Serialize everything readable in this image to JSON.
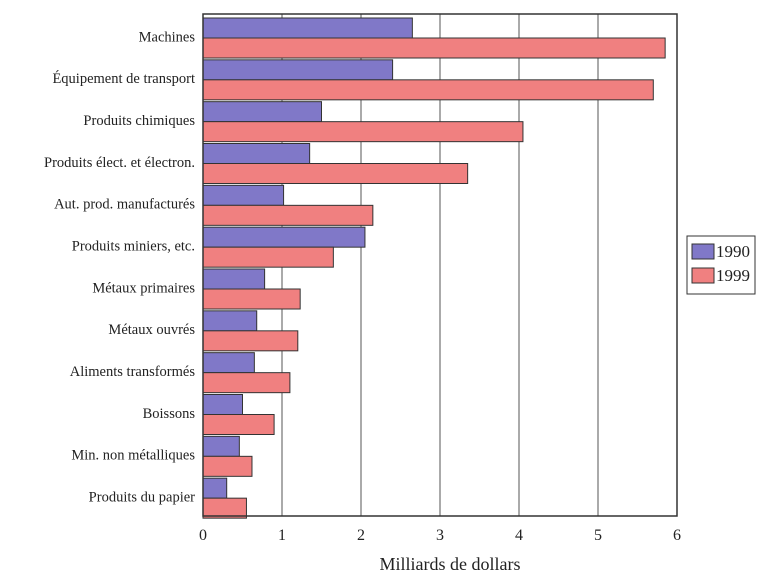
{
  "chart_data": {
    "type": "bar",
    "orientation": "horizontal",
    "title": "",
    "xlabel": "Milliards de dollars",
    "ylabel": "",
    "xlim": [
      0,
      6
    ],
    "xticks": [
      "0",
      "1",
      "2",
      "3",
      "4",
      "5",
      "6"
    ],
    "grid": true,
    "legend_position": "right",
    "categories": [
      "Machines",
      "Équipement de transport",
      "Produits chimiques",
      "Produits élect. et électron.",
      "Aut. prod. manufacturés",
      "Produits miniers, etc.",
      "Métaux primaires",
      "Métaux ouvrés",
      "Aliments transformés",
      "Boissons",
      "Min. non métalliques",
      "Produits du papier"
    ],
    "series": [
      {
        "name": "1990",
        "color": "#8078c8",
        "values": [
          2.65,
          2.4,
          1.5,
          1.35,
          1.02,
          2.05,
          0.78,
          0.68,
          0.65,
          0.5,
          0.46,
          0.3
        ]
      },
      {
        "name": "1999",
        "color": "#f08080",
        "values": [
          5.85,
          5.7,
          4.05,
          3.35,
          2.15,
          1.65,
          1.23,
          1.2,
          1.1,
          0.9,
          0.62,
          0.55
        ]
      }
    ]
  }
}
